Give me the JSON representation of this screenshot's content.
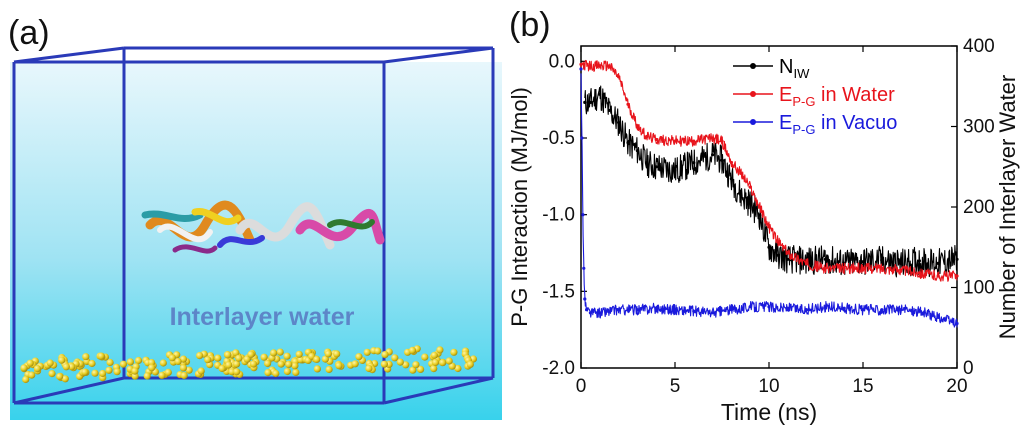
{
  "panel_a": {
    "label": "(a)",
    "annotation": "Interlayer water",
    "colors": {
      "background_top": "#e8f7fc",
      "background_bottom": "#38d2ec",
      "box": "#2a3ab8",
      "graphene": "#e6cc1f",
      "annotation": "#5d86c8"
    }
  },
  "panel_b": {
    "label": "(b)"
  },
  "chart_data": {
    "type": "line",
    "xlabel": "Time (ns)",
    "ylabel": "P-G Interaction (MJ/mol)",
    "y2label": "Number of Interlayer Water",
    "xlim": [
      0,
      20
    ],
    "ylim": [
      -2.0,
      0.1
    ],
    "y2lim": [
      0,
      400
    ],
    "xticks": [
      "0",
      "5",
      "10",
      "15",
      "20"
    ],
    "yticks": [
      "0.0",
      "-0.5",
      "-1.0",
      "-1.5",
      "-2.0"
    ],
    "y2ticks": [
      "400",
      "300",
      "200",
      "100",
      "0"
    ],
    "legend_position": "top-right",
    "series": [
      {
        "name": "N",
        "sub": "IW",
        "axis": "right",
        "color": "#000000",
        "x": [
          0.2,
          0.5,
          1.0,
          1.5,
          2.0,
          2.5,
          3.0,
          3.5,
          4.0,
          5.0,
          6.0,
          7.0,
          7.5,
          8.0,
          8.5,
          9.0,
          9.5,
          10.0,
          10.5,
          11.0,
          12.0,
          13.0,
          14.0,
          15.0,
          16.0,
          17.0,
          18.0,
          19.0,
          20.0
        ],
        "values": [
          330,
          330,
          340,
          320,
          305,
          280,
          270,
          255,
          250,
          245,
          255,
          265,
          258,
          235,
          215,
          205,
          190,
          150,
          140,
          135,
          133,
          135,
          130,
          132,
          134,
          130,
          133,
          130,
          135
        ]
      },
      {
        "name": "E",
        "sub": "P-G",
        "suffix": " in Water",
        "axis": "left",
        "color": "#e8141c",
        "x": [
          0,
          0.5,
          1.0,
          1.5,
          2.0,
          2.5,
          3.0,
          3.5,
          4.0,
          5.0,
          6.0,
          7.0,
          7.5,
          8.0,
          8.5,
          9.0,
          9.5,
          10.0,
          10.5,
          11.0,
          12.0,
          13.0,
          14.0,
          15.0,
          16.0,
          17.0,
          18.0,
          19.0,
          20.0
        ],
        "values": [
          -0.02,
          -0.03,
          -0.03,
          -0.03,
          -0.1,
          -0.28,
          -0.42,
          -0.49,
          -0.51,
          -0.52,
          -0.52,
          -0.5,
          -0.52,
          -0.66,
          -0.73,
          -0.82,
          -0.95,
          -1.08,
          -1.18,
          -1.25,
          -1.32,
          -1.35,
          -1.35,
          -1.35,
          -1.35,
          -1.36,
          -1.38,
          -1.4,
          -1.4
        ]
      },
      {
        "name": "E",
        "sub": "P-G",
        "suffix": " in Vacuo",
        "axis": "left",
        "color": "#1a1adc",
        "x": [
          0,
          0.05,
          0.1,
          0.15,
          0.2,
          0.3,
          0.5,
          1.0,
          2.0,
          3.0,
          4.0,
          5.0,
          6.0,
          7.0,
          8.0,
          9.0,
          10.0,
          11.0,
          12.0,
          13.0,
          14.0,
          15.0,
          16.0,
          17.0,
          18.0,
          19.0,
          20.0
        ],
        "values": [
          -0.05,
          -0.5,
          -1.0,
          -1.35,
          -1.55,
          -1.62,
          -1.64,
          -1.64,
          -1.62,
          -1.62,
          -1.61,
          -1.62,
          -1.63,
          -1.64,
          -1.62,
          -1.6,
          -1.6,
          -1.61,
          -1.62,
          -1.6,
          -1.61,
          -1.62,
          -1.62,
          -1.62,
          -1.63,
          -1.67,
          -1.71
        ]
      }
    ]
  }
}
